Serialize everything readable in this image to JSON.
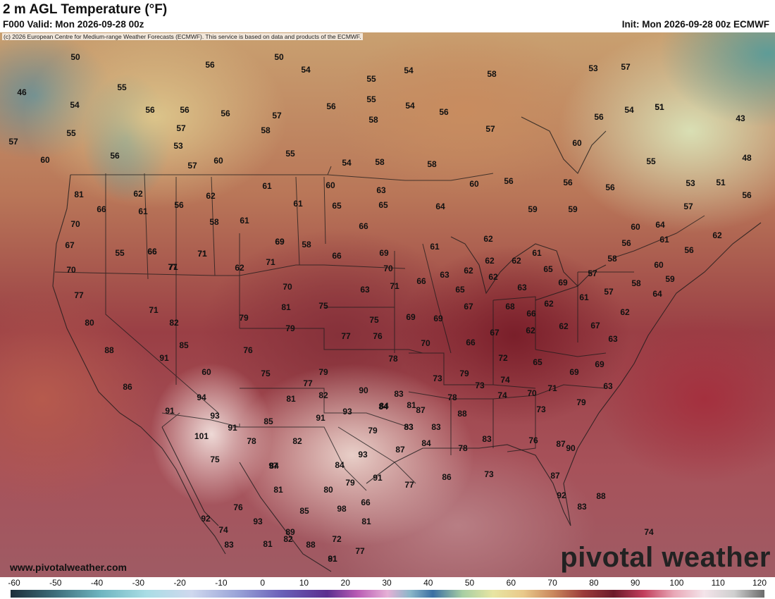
{
  "header": {
    "title": "2 m AGL Temperature (°F)",
    "valid": "F000 Valid: Mon 2026-09-28 00z",
    "init": "Init: Mon 2026-09-28 00z ECMWF"
  },
  "map": {
    "copyright": "(c) 2026 European Centre for Medium-range Weather Forecasts (ECMWF). This service is based on data and products of the ECMWF.",
    "website": "www.pivotalweather.com",
    "logo": "pivotal weather",
    "unit": "°F",
    "station_values": [
      "50",
      "50",
      "54",
      "55",
      "54",
      "58",
      "46",
      "56",
      "55",
      "54",
      "56",
      "56",
      "56",
      "57",
      "54",
      "56",
      "55",
      "56",
      "58",
      "57",
      "51",
      "56",
      "57",
      "53",
      "57",
      "55",
      "58",
      "51",
      "43",
      "57",
      "60",
      "54",
      "56",
      "53",
      "55",
      "60",
      "57",
      "60",
      "55",
      "58",
      "54",
      "58",
      "56",
      "48",
      "66",
      "56",
      "61",
      "62",
      "62",
      "60",
      "60",
      "56",
      "56",
      "53",
      "51",
      "81",
      "61",
      "63",
      "61",
      "65",
      "65",
      "64",
      "59",
      "57",
      "62",
      "58",
      "70",
      "56",
      "61",
      "66",
      "60",
      "64",
      "69",
      "67",
      "66",
      "55",
      "62",
      "62",
      "58",
      "56",
      "61",
      "70",
      "71",
      "62",
      "61",
      "58",
      "69",
      "66",
      "69",
      "62",
      "61",
      "59",
      "65",
      "60",
      "56",
      "77",
      "71",
      "71",
      "70",
      "63",
      "63",
      "62",
      "57",
      "58",
      "59",
      "62",
      "77",
      "66",
      "71",
      "70",
      "71",
      "66",
      "65",
      "57",
      "64",
      "69",
      "80",
      "68",
      "62",
      "75",
      "67",
      "62",
      "61",
      "63",
      "79",
      "81",
      "79",
      "75",
      "69",
      "69",
      "67",
      "66",
      "62",
      "67",
      "77",
      "76",
      "70",
      "66",
      "62",
      "63",
      "85",
      "76",
      "78",
      "72",
      "65",
      "69",
      "71",
      "91",
      "88",
      "60",
      "73",
      "79",
      "69",
      "86",
      "79",
      "73",
      "74",
      "70",
      "71",
      "63",
      "84",
      "91",
      "75",
      "77",
      "90",
      "83",
      "87",
      "78",
      "74",
      "79",
      "73",
      "81",
      "82",
      "93",
      "84",
      "83",
      "88",
      "83",
      "91",
      "94",
      "93",
      "85",
      "91",
      "79",
      "83",
      "82",
      "84",
      "76",
      "101",
      "87",
      "78",
      "93",
      "75",
      "81",
      "97",
      "84",
      "82",
      "87",
      "91",
      "86",
      "73",
      "78",
      "77",
      "90",
      "83",
      "87",
      "83",
      "84",
      "81",
      "80",
      "79",
      "82",
      "66",
      "92",
      "98",
      "74",
      "83",
      "77",
      "88",
      "81",
      "88",
      "85",
      "81",
      "72",
      "76",
      "93",
      "89",
      "81",
      "91",
      "92",
      "74",
      "76",
      "72",
      "91",
      "81"
    ],
    "land_labels": []
  },
  "colorbar": {
    "ticks": [
      "-60",
      "-50",
      "-40",
      "-30",
      "-20",
      "-10",
      "0",
      "10",
      "20",
      "30",
      "40",
      "50",
      "60",
      "70",
      "80",
      "90",
      "100",
      "110",
      "120"
    ]
  }
}
